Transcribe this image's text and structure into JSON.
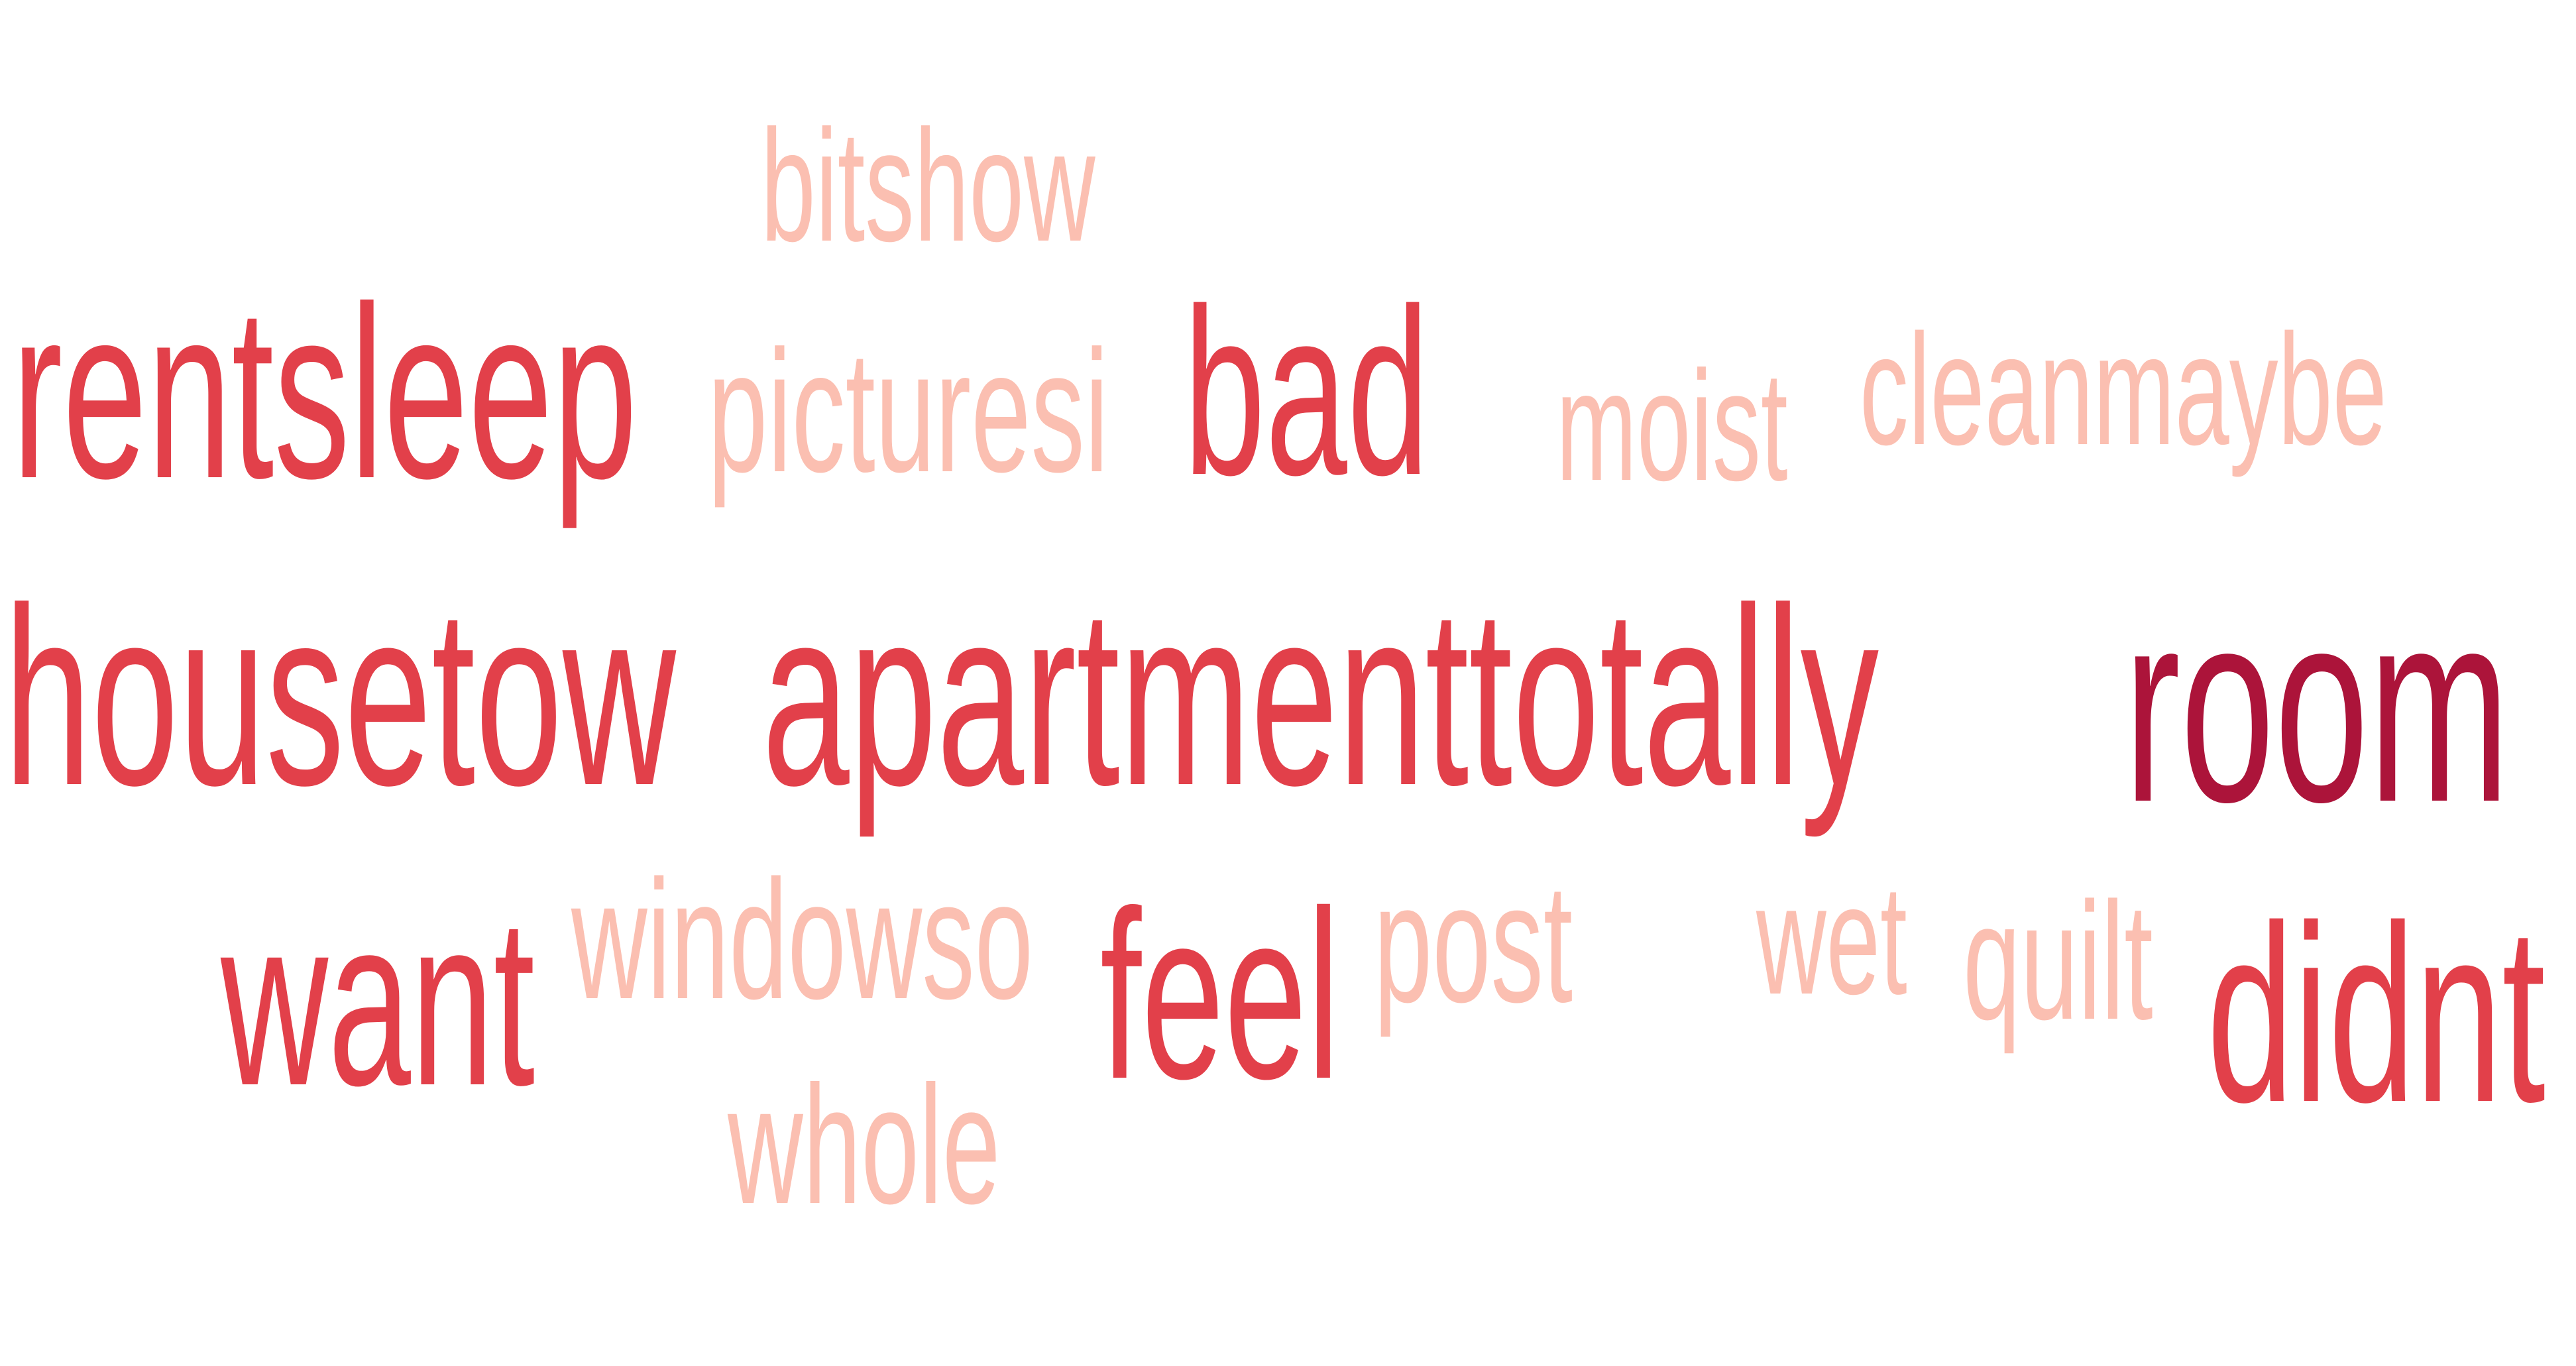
{
  "palette": {
    "dark": "#AC143A",
    "mid": "#E2404A",
    "light": "#FBBFB1"
  },
  "words": [
    {
      "id": "bitshow",
      "text": "bitshow",
      "color": "light"
    },
    {
      "id": "rentsleep",
      "text": "rentsleep",
      "color": "mid"
    },
    {
      "id": "picturesi",
      "text": "picturesi",
      "color": "light"
    },
    {
      "id": "bad",
      "text": "bad",
      "color": "mid"
    },
    {
      "id": "moist",
      "text": "moist",
      "color": "light"
    },
    {
      "id": "cleanmaybe",
      "text": "cleanmaybe",
      "color": "light"
    },
    {
      "id": "housetow",
      "text": "housetow",
      "color": "mid"
    },
    {
      "id": "apartmenttotally",
      "text": "apartmenttotally",
      "color": "mid"
    },
    {
      "id": "room",
      "text": "room",
      "color": "dark"
    },
    {
      "id": "want",
      "text": "want",
      "color": "mid"
    },
    {
      "id": "windowso",
      "text": "windowso",
      "color": "light"
    },
    {
      "id": "feel",
      "text": "feel",
      "color": "mid"
    },
    {
      "id": "post",
      "text": "post",
      "color": "light"
    },
    {
      "id": "wet",
      "text": "wet",
      "color": "light"
    },
    {
      "id": "quilt",
      "text": "quilt",
      "color": "light"
    },
    {
      "id": "didnt",
      "text": "didnt",
      "color": "mid"
    },
    {
      "id": "whole",
      "text": "whole",
      "color": "light"
    }
  ]
}
